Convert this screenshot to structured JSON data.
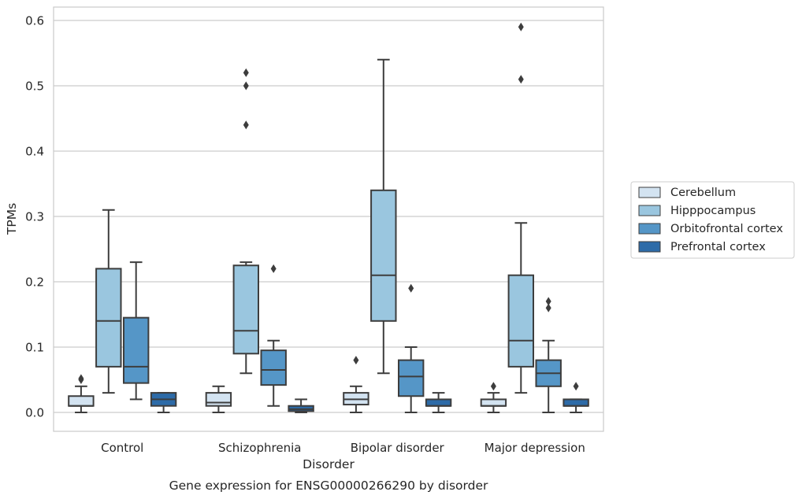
{
  "chart_data": {
    "type": "box",
    "title": "Gene expression for ENSG00000266290 by disorder",
    "xlabel": "Disorder",
    "ylabel": "TPMs",
    "ylim": [
      -0.028,
      0.62
    ],
    "yticks": [
      0.0,
      0.1,
      0.2,
      0.3,
      0.4,
      0.5,
      0.6
    ],
    "ytick_labels": [
      "0.0",
      "0.1",
      "0.2",
      "0.3",
      "0.4",
      "0.5",
      "0.6"
    ],
    "grid": "horizontal",
    "legend_position": "right",
    "categories": [
      "Control",
      "Schizophrenia",
      "Bipolar disorder",
      "Major depression"
    ],
    "series": [
      {
        "name": "Cerebellum",
        "color": "#d3e3f1",
        "boxes": [
          {
            "whislo": 0.0,
            "q1": 0.01,
            "median": 0.01,
            "q3": 0.025,
            "whishi": 0.04,
            "fliers": [
              0.05,
              0.052
            ]
          },
          {
            "whislo": 0.0,
            "q1": 0.01,
            "median": 0.015,
            "q3": 0.03,
            "whishi": 0.04,
            "fliers": []
          },
          {
            "whislo": 0.0,
            "q1": 0.012,
            "median": 0.02,
            "q3": 0.03,
            "whishi": 0.04,
            "fliers": [
              0.08
            ]
          },
          {
            "whislo": 0.0,
            "q1": 0.01,
            "median": 0.01,
            "q3": 0.02,
            "whishi": 0.03,
            "fliers": [
              0.04
            ]
          }
        ]
      },
      {
        "name": "Hipppocampus",
        "color": "#9ac6df",
        "boxes": [
          {
            "whislo": 0.03,
            "q1": 0.07,
            "median": 0.14,
            "q3": 0.22,
            "whishi": 0.31,
            "fliers": []
          },
          {
            "whislo": 0.06,
            "q1": 0.09,
            "median": 0.125,
            "q3": 0.225,
            "whishi": 0.23,
            "fliers": [
              0.44,
              0.5,
              0.52
            ]
          },
          {
            "whislo": 0.06,
            "q1": 0.14,
            "median": 0.21,
            "q3": 0.34,
            "whishi": 0.54,
            "fliers": []
          },
          {
            "whislo": 0.03,
            "q1": 0.07,
            "median": 0.11,
            "q3": 0.21,
            "whishi": 0.29,
            "fliers": [
              0.51,
              0.59
            ]
          }
        ]
      },
      {
        "name": "Orbitofrontal cortex",
        "color": "#5596c7",
        "boxes": [
          {
            "whislo": 0.02,
            "q1": 0.045,
            "median": 0.07,
            "q3": 0.145,
            "whishi": 0.23,
            "fliers": []
          },
          {
            "whislo": 0.01,
            "q1": 0.042,
            "median": 0.065,
            "q3": 0.095,
            "whishi": 0.11,
            "fliers": [
              0.22
            ]
          },
          {
            "whislo": 0.0,
            "q1": 0.025,
            "median": 0.055,
            "q3": 0.08,
            "whishi": 0.1,
            "fliers": [
              0.19
            ]
          },
          {
            "whislo": 0.0,
            "q1": 0.04,
            "median": 0.06,
            "q3": 0.08,
            "whishi": 0.11,
            "fliers": [
              0.16,
              0.17
            ]
          }
        ]
      },
      {
        "name": "Prefrontal cortex",
        "color": "#2d6ba8",
        "boxes": [
          {
            "whislo": 0.0,
            "q1": 0.01,
            "median": 0.02,
            "q3": 0.03,
            "whishi": 0.03,
            "fliers": []
          },
          {
            "whislo": 0.0,
            "q1": 0.002,
            "median": 0.005,
            "q3": 0.01,
            "whishi": 0.02,
            "fliers": []
          },
          {
            "whislo": 0.0,
            "q1": 0.01,
            "median": 0.01,
            "q3": 0.02,
            "whishi": 0.03,
            "fliers": []
          },
          {
            "whislo": 0.0,
            "q1": 0.01,
            "median": 0.01,
            "q3": 0.02,
            "whishi": 0.02,
            "fliers": [
              0.04
            ]
          }
        ]
      }
    ]
  }
}
